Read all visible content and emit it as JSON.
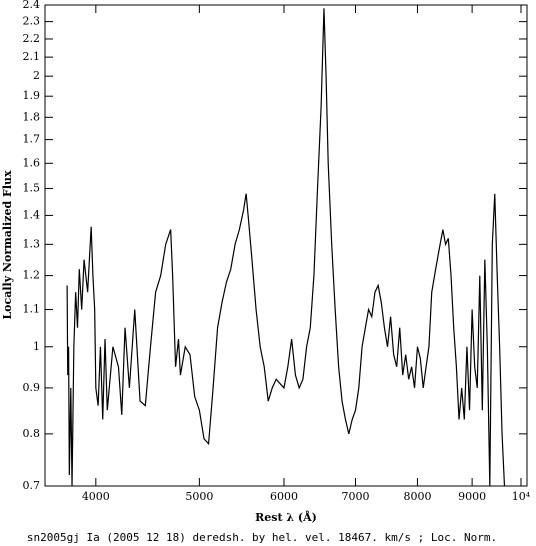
{
  "chart_data": {
    "type": "line",
    "title": "sn2005gj Ia (2005 12 18) deredsh. by hel. vel. 18467. km/s ;  Loc. Norm.",
    "xlabel": "Rest λ (Å)",
    "ylabel": "Locally Normalized Flux",
    "xscale": "log",
    "yscale": "log",
    "color": "#000000",
    "xlim": [
      3585,
      10130
    ],
    "ylim": [
      0.7,
      2.4
    ],
    "xticks": [
      4000,
      5000,
      6000,
      7000,
      8000,
      9000,
      {
        "value": 10000,
        "label": "10⁴"
      }
    ],
    "yticks": [
      0.7,
      0.8,
      0.9,
      1,
      1.1,
      1.2,
      1.3,
      1.4,
      1.5,
      1.6,
      1.7,
      1.8,
      1.9,
      2,
      2.1,
      2.2,
      2.3,
      2.4
    ],
    "x": [
      3760,
      3765,
      3772,
      3778,
      3790,
      3800,
      3815,
      3830,
      3845,
      3860,
      3880,
      3900,
      3930,
      3960,
      3975,
      3990,
      4000,
      4020,
      4040,
      4060,
      4080,
      4100,
      4150,
      4200,
      4230,
      4260,
      4300,
      4350,
      4400,
      4450,
      4500,
      4550,
      4600,
      4650,
      4700,
      4720,
      4750,
      4780,
      4800,
      4850,
      4900,
      4950,
      5000,
      5050,
      5100,
      5150,
      5200,
      5250,
      5300,
      5350,
      5400,
      5450,
      5500,
      5530,
      5560,
      5600,
      5650,
      5700,
      5750,
      5800,
      5850,
      5900,
      6000,
      6050,
      6100,
      6150,
      6200,
      6250,
      6300,
      6350,
      6400,
      6450,
      6500,
      6540,
      6570,
      6600,
      6650,
      6700,
      6750,
      6800,
      6850,
      6900,
      6950,
      7000,
      7050,
      7100,
      7150,
      7200,
      7250,
      7300,
      7350,
      7400,
      7450,
      7500,
      7550,
      7600,
      7650,
      7700,
      7750,
      7800,
      7850,
      7900,
      7950,
      8000,
      8050,
      8100,
      8150,
      8200,
      8250,
      8300,
      8350,
      8400,
      8450,
      8500,
      8550,
      8600,
      8650,
      8700,
      8750,
      8800,
      8850,
      8900,
      8950,
      9000,
      9050,
      9100,
      9150,
      9200,
      9250,
      9300,
      9350,
      9400,
      9450,
      9500,
      9550,
      9600,
      9650
    ],
    "values": [
      1.17,
      0.93,
      1.0,
      0.72,
      0.9,
      0.7,
      1.0,
      1.15,
      1.05,
      1.22,
      1.1,
      1.25,
      1.15,
      1.36,
      1.2,
      1.1,
      0.9,
      0.86,
      1.0,
      0.83,
      1.02,
      0.85,
      1.0,
      0.95,
      0.84,
      1.05,
      0.9,
      1.1,
      0.87,
      0.86,
      1.0,
      1.15,
      1.2,
      1.3,
      1.35,
      1.2,
      0.95,
      1.02,
      0.93,
      1.0,
      0.98,
      0.88,
      0.85,
      0.79,
      0.78,
      0.9,
      1.05,
      1.12,
      1.18,
      1.22,
      1.3,
      1.35,
      1.42,
      1.48,
      1.38,
      1.25,
      1.1,
      1.0,
      0.95,
      0.87,
      0.9,
      0.92,
      0.9,
      0.95,
      1.02,
      0.93,
      0.9,
      0.92,
      1.0,
      1.05,
      1.2,
      1.5,
      1.85,
      2.38,
      2.0,
      1.6,
      1.3,
      1.1,
      0.95,
      0.87,
      0.83,
      0.8,
      0.83,
      0.85,
      0.9,
      1.0,
      1.05,
      1.1,
      1.08,
      1.15,
      1.17,
      1.12,
      1.05,
      1.0,
      1.08,
      0.98,
      0.95,
      1.05,
      0.93,
      0.98,
      0.92,
      0.95,
      0.9,
      1.0,
      0.97,
      0.9,
      0.95,
      1.0,
      1.15,
      1.2,
      1.25,
      1.3,
      1.35,
      1.3,
      1.32,
      1.2,
      1.05,
      0.95,
      0.83,
      0.9,
      0.83,
      1.0,
      0.85,
      1.1,
      0.95,
      0.9,
      1.2,
      0.85,
      1.25,
      1.0,
      0.7,
      1.3,
      1.48,
      1.2,
      1.0,
      0.8,
      0.7
    ]
  }
}
